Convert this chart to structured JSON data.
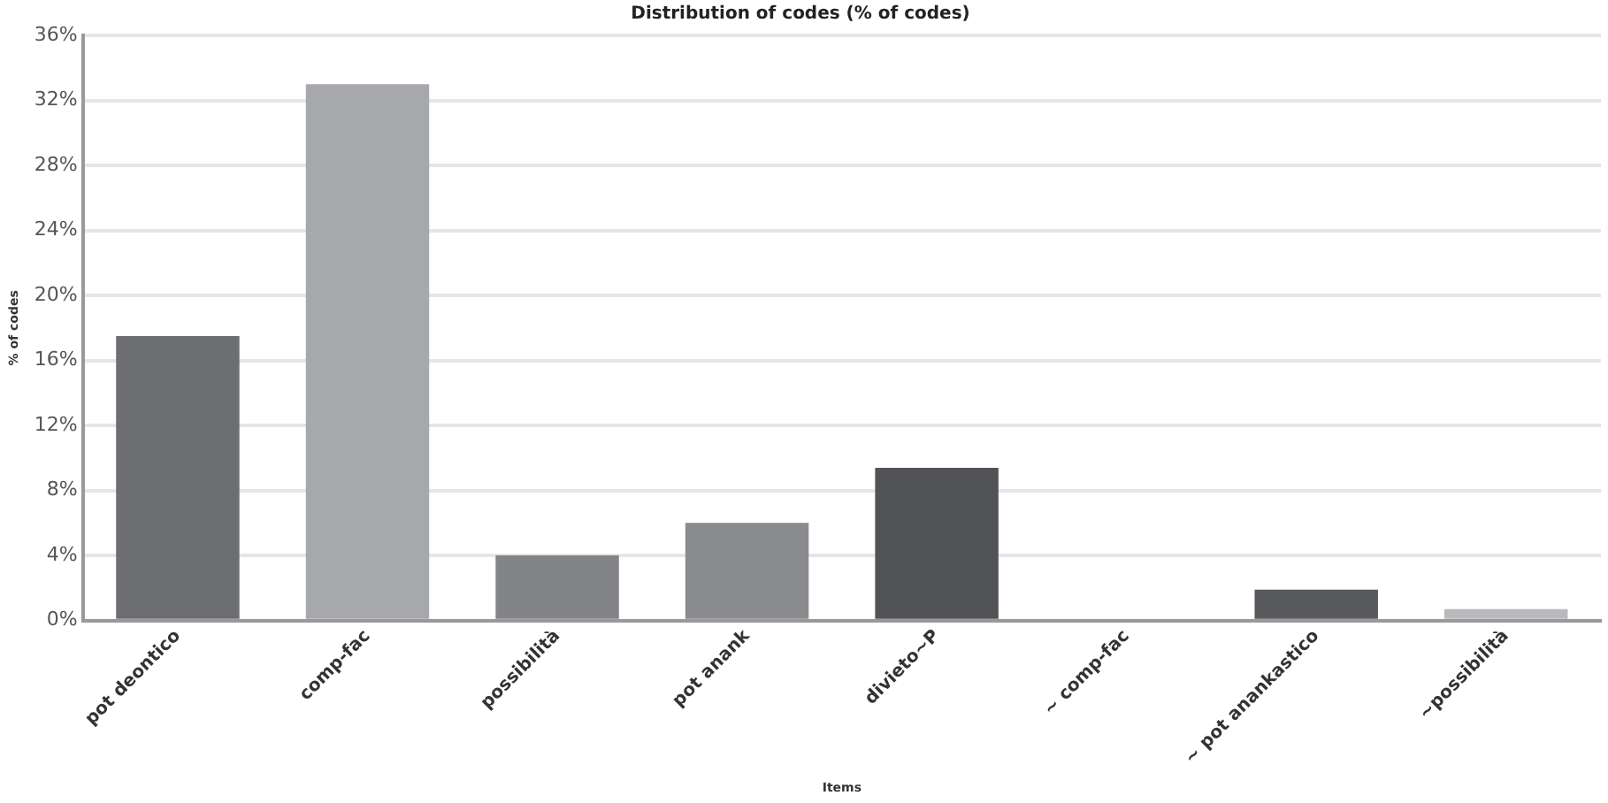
{
  "chart_data": {
    "type": "bar",
    "title": "Distribution of codes (% of codes)",
    "xlabel": "Items",
    "ylabel": "% of codes",
    "categories": [
      "pot deontico",
      "comp-fac",
      "possibilità",
      "pot anank",
      "divieto~P",
      "~ comp-fac",
      "~ pot anankastico",
      "~possibilità"
    ],
    "values": [
      17.5,
      33,
      4,
      6,
      9.4,
      0,
      1.9,
      0.7
    ],
    "colors": [
      "#6d6e72",
      "#a7a8ac",
      "#838488",
      "#8a8b8f",
      "#525356",
      "#7a7b7f",
      "#58595c",
      "#b9babd"
    ],
    "ylim": [
      0,
      36
    ],
    "yticks": [
      {
        "value": 0,
        "label": "0%"
      },
      {
        "value": 4,
        "label": "4%"
      },
      {
        "value": 8,
        "label": "8%"
      },
      {
        "value": 12,
        "label": "12%"
      },
      {
        "value": 16,
        "label": "16%"
      },
      {
        "value": 20,
        "label": "20%"
      },
      {
        "value": 24,
        "label": "24%"
      },
      {
        "value": 28,
        "label": "28%"
      },
      {
        "value": 32,
        "label": "32%"
      },
      {
        "value": 36,
        "label": "36%"
      }
    ],
    "grid": "y",
    "legend": false
  }
}
